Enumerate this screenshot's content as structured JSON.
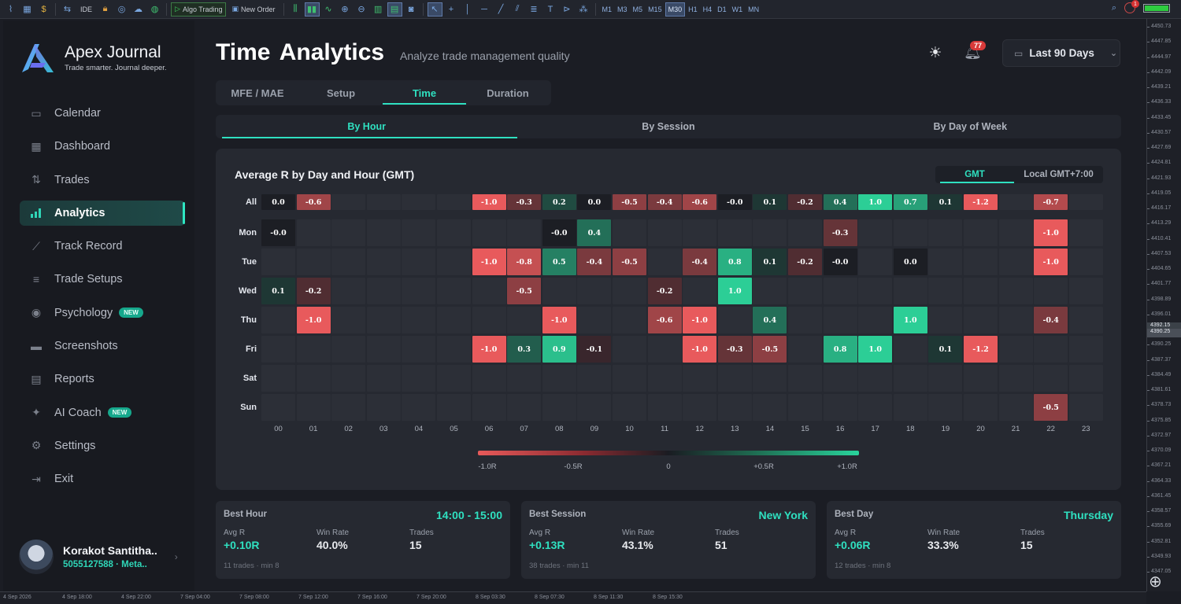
{
  "toolbar": {
    "algo_label": "Algo Trading",
    "order_label": "New Order",
    "ide_label": "IDE",
    "timeframes": [
      "M1",
      "M3",
      "M5",
      "M15",
      "M30",
      "H1",
      "H4",
      "D1",
      "W1",
      "MN"
    ],
    "selected_tf": "M30",
    "alarm_count": "1"
  },
  "price_axis": [
    "4450.73",
    "4447.85",
    "4444.97",
    "4442.09",
    "4439.21",
    "4436.33",
    "4433.45",
    "4430.57",
    "4427.69",
    "4424.81",
    "4421.93",
    "4419.05",
    "4416.17",
    "4413.29",
    "4410.41",
    "4407.53",
    "4404.65",
    "4401.77",
    "4398.89",
    "4396.01",
    "4393.13",
    "4390.25",
    "4387.37",
    "4384.49",
    "4381.61",
    "4378.73",
    "4375.85",
    "4372.97",
    "4370.09",
    "4367.21",
    "4364.33",
    "4361.45",
    "4358.57",
    "4355.69",
    "4352.81",
    "4349.93",
    "4347.05"
  ],
  "price_highlight": [
    "4392.15",
    "4390.25"
  ],
  "time_axis": [
    "4 Sep 2026",
    "4 Sep 18:00",
    "4 Sep 22:00",
    "7 Sep 04:00",
    "7 Sep 08:00",
    "7 Sep 12:00",
    "7 Sep 16:00",
    "7 Sep 20:00",
    "8 Sep 03:30",
    "8 Sep 07:30",
    "8 Sep 11:30",
    "8 Sep 15:30"
  ],
  "brand": {
    "name": "Apex Journal",
    "tagline": "Trade smarter. Journal deeper."
  },
  "nav": [
    {
      "label": "Calendar",
      "icon": "calendar-icon"
    },
    {
      "label": "Dashboard",
      "icon": "dashboard-icon"
    },
    {
      "label": "Trades",
      "icon": "trades-icon"
    },
    {
      "label": "Analytics",
      "icon": "analytics-icon",
      "active": true
    },
    {
      "label": "Track Record",
      "icon": "track-record-icon"
    },
    {
      "label": "Trade Setups",
      "icon": "sliders-icon"
    },
    {
      "label": "Psychology",
      "icon": "psychology-icon",
      "badge": "NEW"
    },
    {
      "label": "Screenshots",
      "icon": "screenshot-icon"
    },
    {
      "label": "Reports",
      "icon": "report-icon"
    },
    {
      "label": "AI Coach",
      "icon": "sparkle-icon",
      "badge": "NEW"
    },
    {
      "label": "Settings",
      "icon": "gear-icon"
    },
    {
      "label": "Exit",
      "icon": "exit-icon"
    }
  ],
  "user": {
    "name": "Korakot Santitha..",
    "account": "5055127588  ·  Meta.."
  },
  "header": {
    "title": "Time  Analytics",
    "subtitle": "Analyze trade management quality",
    "notif_count": "77",
    "range": "Last 90 Days"
  },
  "tabs": [
    {
      "label": "MFE / MAE"
    },
    {
      "label": "Setup"
    },
    {
      "label": "Time",
      "active": true
    },
    {
      "label": "Duration"
    }
  ],
  "subtabs": [
    {
      "label": "By Hour",
      "active": true
    },
    {
      "label": "By Session"
    },
    {
      "label": "By Day of Week"
    }
  ],
  "heatmap": {
    "title": "Average R by Day and Hour (GMT)",
    "tz_options": [
      {
        "label": "GMT",
        "active": true
      },
      {
        "label": "Local GMT+7:00"
      }
    ],
    "rows": [
      "All",
      "Mon",
      "Tue",
      "Wed",
      "Thu",
      "Fri",
      "Sat",
      "Sun"
    ],
    "hours": [
      "00",
      "01",
      "02",
      "03",
      "04",
      "05",
      "06",
      "07",
      "08",
      "09",
      "10",
      "11",
      "12",
      "13",
      "14",
      "15",
      "16",
      "17",
      "18",
      "19",
      "20",
      "21",
      "22",
      "23"
    ],
    "values": {
      "All": [
        "0.0",
        "-0.6",
        null,
        null,
        null,
        null,
        "-1.0",
        "-0.3",
        "0.2",
        "0.0",
        "-0.5",
        "-0.4",
        "-0.6",
        "-0.0",
        "0.1",
        "-0.2",
        "0.4",
        "1.0",
        "0.7",
        "0.1",
        "-1.2",
        null,
        "-0.7",
        null
      ],
      "Mon": [
        "-0.0",
        null,
        null,
        null,
        null,
        null,
        null,
        null,
        "-0.0",
        "0.4",
        null,
        null,
        null,
        null,
        null,
        null,
        "-0.3",
        null,
        null,
        null,
        null,
        null,
        "-1.0",
        null
      ],
      "Tue": [
        null,
        null,
        null,
        null,
        null,
        null,
        "-1.0",
        "-0.8",
        "0.5",
        "-0.4",
        "-0.5",
        null,
        "-0.4",
        "0.8",
        "0.1",
        "-0.2",
        "-0.0",
        null,
        "0.0",
        null,
        null,
        null,
        "-1.0",
        null
      ],
      "Wed": [
        "0.1",
        "-0.2",
        null,
        null,
        null,
        null,
        null,
        "-0.5",
        null,
        null,
        null,
        "-0.2",
        null,
        "1.0",
        null,
        null,
        null,
        null,
        null,
        null,
        null,
        null,
        null,
        null
      ],
      "Thu": [
        null,
        "-1.0",
        null,
        null,
        null,
        null,
        null,
        null,
        "-1.0",
        null,
        null,
        "-0.6",
        "-1.0",
        null,
        "0.4",
        null,
        null,
        null,
        "1.0",
        null,
        null,
        null,
        "-0.4",
        null
      ],
      "Fri": [
        null,
        null,
        null,
        null,
        null,
        null,
        "-1.0",
        "0.3",
        "0.9",
        "-0.1",
        null,
        null,
        "-1.0",
        "-0.3",
        "-0.5",
        null,
        "0.8",
        "1.0",
        null,
        "0.1",
        "-1.2",
        null,
        null,
        null
      ],
      "Sat": [
        null,
        null,
        null,
        null,
        null,
        null,
        null,
        null,
        null,
        null,
        null,
        null,
        null,
        null,
        null,
        null,
        null,
        null,
        null,
        null,
        null,
        null,
        null,
        null
      ],
      "Sun": [
        null,
        null,
        null,
        null,
        null,
        null,
        null,
        null,
        null,
        null,
        null,
        null,
        null,
        null,
        null,
        null,
        null,
        null,
        null,
        null,
        null,
        null,
        "-0.5",
        null
      ]
    },
    "legend": [
      "-1.0R",
      "-0.5R",
      "0",
      "+0.5R",
      "+1.0R"
    ]
  },
  "stats": [
    {
      "title": "Best Hour",
      "best": "14:00 - 15:00",
      "avg_label": "Avg R",
      "avg": "+0.10R",
      "win_label": "Win Rate",
      "win": "40.0%",
      "trades_label": "Trades",
      "trades": "15",
      "foot": "11 trades  ·  min 8"
    },
    {
      "title": "Best Session",
      "best": "New York",
      "avg_label": "Avg R",
      "avg": "+0.13R",
      "win_label": "Win Rate",
      "win": "43.1%",
      "trades_label": "Trades",
      "trades": "51",
      "foot": "38 trades  ·  min 11"
    },
    {
      "title": "Best Day",
      "best": "Thursday",
      "avg_label": "Avg R",
      "avg": "+0.06R",
      "win_label": "Win Rate",
      "win": "33.3%",
      "trades_label": "Trades",
      "trades": "15",
      "foot": "12 trades  ·  min 8"
    }
  ],
  "colors": {
    "accent": "#2fe0c0",
    "negative": "#e85a5a",
    "positive": "#29d49c",
    "card": "#262931",
    "sidebar": "#181a20"
  }
}
